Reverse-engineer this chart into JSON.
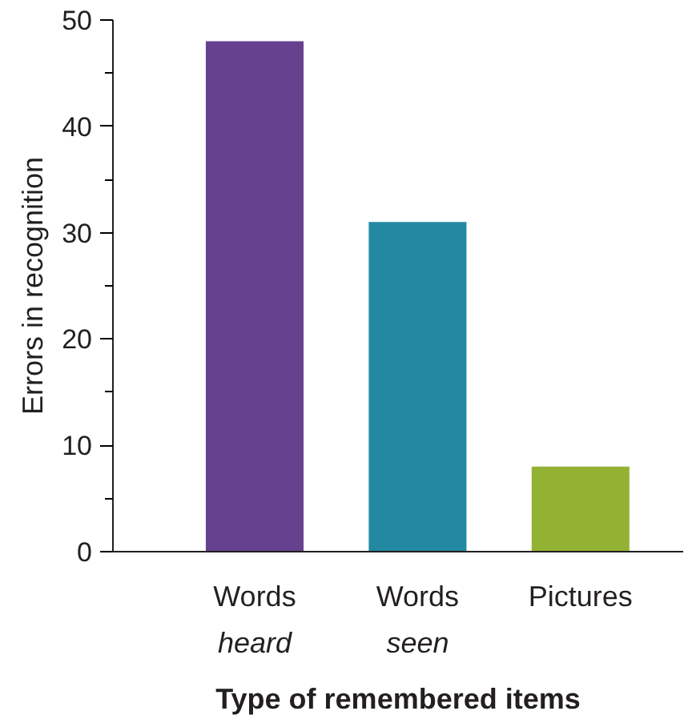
{
  "chart_data": {
    "type": "bar",
    "xlabel": "Type of remembered items",
    "ylabel": "Errors in recognition",
    "categories": [
      "Words\nheard",
      "Words\nseen",
      "Pictures"
    ],
    "values": [
      48,
      31,
      8
    ],
    "colors": [
      "#65418f",
      "#2389a3",
      "#93b234"
    ],
    "ylim": [
      0,
      50
    ],
    "yticks": [
      0,
      10,
      20,
      30,
      40,
      50
    ],
    "grid": false
  }
}
